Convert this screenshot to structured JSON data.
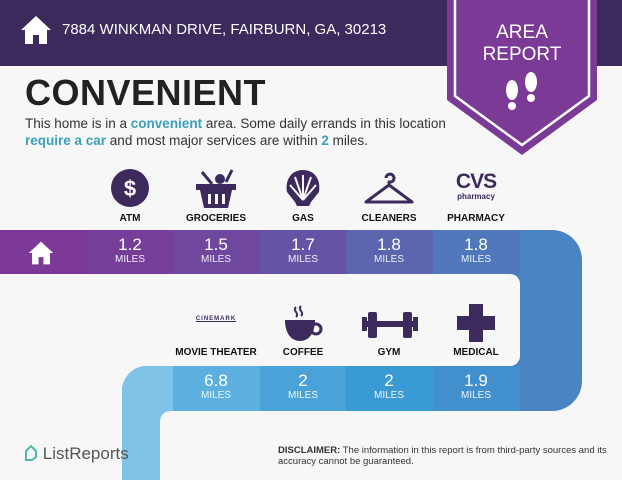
{
  "header": {
    "address": "7884 WINKMAN DRIVE, FAIRBURN, GA, 30213",
    "badge_line1": "AREA",
    "badge_line2": "REPORT",
    "icon": "house-icon",
    "badge_icon": "footprints-icon"
  },
  "title": "CONVENIENT",
  "description": {
    "p1": "This home is in a ",
    "h1": "convenient",
    "p2": " area. Some daily errands in this location ",
    "h2": "require a car",
    "p3": " and most major services are within ",
    "h3": "2",
    "p4": " miles."
  },
  "colors": {
    "header": "#3d2a5c",
    "badge": "#7b3a96",
    "highlight": "#3aa0b8",
    "icon": "#3d2a5c"
  },
  "top_row": [
    {
      "label": "ATM",
      "value": "1.2",
      "unit": "MILES",
      "icon": "dollar-icon"
    },
    {
      "label": "GROCERIES",
      "value": "1.5",
      "unit": "MILES",
      "icon": "grocery-basket-icon"
    },
    {
      "label": "GAS",
      "value": "1.7",
      "unit": "MILES",
      "icon": "shell-icon"
    },
    {
      "label": "CLEANERS",
      "value": "1.8",
      "unit": "MILES",
      "icon": "hanger-icon"
    },
    {
      "label": "PHARMACY",
      "value": "1.8",
      "unit": "MILES",
      "icon": "cvs-logo",
      "logo_text": "CVS",
      "logo_sub": "pharmacy"
    }
  ],
  "bottom_row": [
    {
      "label": "MOVIE THEATER",
      "value": "6.8",
      "unit": "MILES",
      "icon": "cinemark-logo",
      "logo_text": "CINEMARK"
    },
    {
      "label": "COFFEE",
      "value": "2",
      "unit": "MILES",
      "icon": "coffee-cup-icon"
    },
    {
      "label": "GYM",
      "value": "2",
      "unit": "MILES",
      "icon": "dumbbell-icon"
    },
    {
      "label": "MEDICAL",
      "value": "1.9",
      "unit": "MILES",
      "icon": "medical-cross-icon"
    }
  ],
  "footer": {
    "brand": "ListReports",
    "disclaimer_label": "DISCLAIMER:",
    "disclaimer": " The information in this report is from third-party sources and its accuracy cannot be guaranteed."
  }
}
